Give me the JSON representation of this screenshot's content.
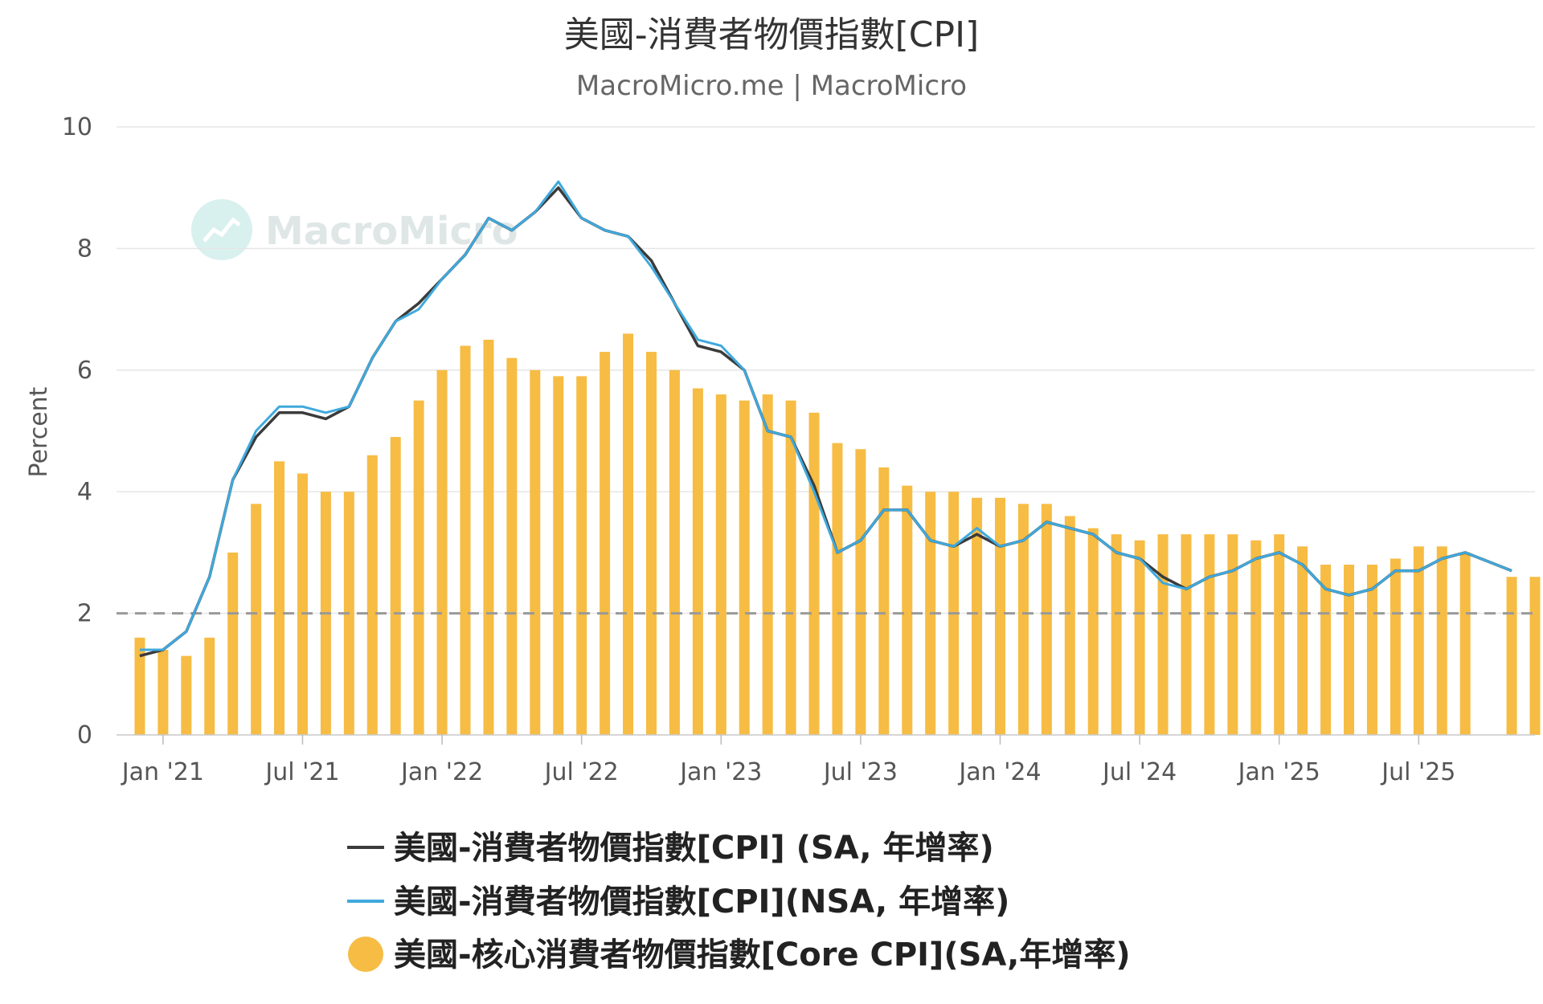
{
  "colors": {
    "sa_line": "#3b3b3b",
    "nsa_line": "#3fa9dd",
    "core_bar": "#f6bc44",
    "grid": "#e6e6e6",
    "ref_line": "#999999",
    "watermark_circle": "#d8f1ee"
  },
  "watermark": {
    "text": "MacroMicro",
    "icon": "macromicro-logo-icon"
  },
  "chart_data": {
    "type": "bar",
    "title": "美國-消費者物價指數[CPI]",
    "subtitle": "MacroMicro.me | MacroMicro",
    "ylabel": "Percent",
    "ylim": [
      0,
      10
    ],
    "yticks": [
      "0",
      "2",
      "4",
      "6",
      "8",
      "10"
    ],
    "xlim": [
      "2020-11",
      "2025-12"
    ],
    "xticks": [
      {
        "date": "2021-01",
        "label": "Jan '21"
      },
      {
        "date": "2021-07",
        "label": "Jul '21"
      },
      {
        "date": "2022-01",
        "label": "Jan '22"
      },
      {
        "date": "2022-07",
        "label": "Jul '22"
      },
      {
        "date": "2023-01",
        "label": "Jan '23"
      },
      {
        "date": "2023-07",
        "label": "Jul '23"
      },
      {
        "date": "2024-01",
        "label": "Jan '24"
      },
      {
        "date": "2024-07",
        "label": "Jul '24"
      },
      {
        "date": "2025-01",
        "label": "Jan '25"
      },
      {
        "date": "2025-07",
        "label": "Jul '25"
      }
    ],
    "reference_line": 2,
    "grid": true,
    "legend_position": "bottom",
    "series": [
      {
        "name": "美國-消費者物價指數[CPI] (SA, 年增率)",
        "type": "line",
        "x": [
          "2020-12",
          "2021-01",
          "2021-02",
          "2021-03",
          "2021-04",
          "2021-05",
          "2021-06",
          "2021-07",
          "2021-08",
          "2021-09",
          "2021-10",
          "2021-11",
          "2021-12",
          "2022-01",
          "2022-02",
          "2022-03",
          "2022-04",
          "2022-05",
          "2022-06",
          "2022-07",
          "2022-08",
          "2022-09",
          "2022-10",
          "2022-11",
          "2022-12",
          "2023-01",
          "2023-02",
          "2023-03",
          "2023-04",
          "2023-05",
          "2023-06",
          "2023-07",
          "2023-08",
          "2023-09",
          "2023-10",
          "2023-11",
          "2023-12",
          "2024-01",
          "2024-02",
          "2024-03",
          "2024-04",
          "2024-05",
          "2024-06",
          "2024-07",
          "2024-08",
          "2024-09",
          "2024-10",
          "2024-11",
          "2024-12",
          "2025-01",
          "2025-02",
          "2025-03",
          "2025-04",
          "2025-05",
          "2025-06",
          "2025-07",
          "2025-08",
          "2025-09",
          "2025-11"
        ],
        "values": [
          1.3,
          1.4,
          1.7,
          2.6,
          4.2,
          4.9,
          5.3,
          5.3,
          5.2,
          5.4,
          6.2,
          6.8,
          7.1,
          7.5,
          7.9,
          8.5,
          8.3,
          8.6,
          9.0,
          8.5,
          8.3,
          8.2,
          7.8,
          7.1,
          6.4,
          6.3,
          6.0,
          5.0,
          4.9,
          4.1,
          3.0,
          3.2,
          3.7,
          3.7,
          3.2,
          3.1,
          3.3,
          3.1,
          3.2,
          3.5,
          3.4,
          3.3,
          3.0,
          2.9,
          2.6,
          2.4,
          2.6,
          2.7,
          2.9,
          3.0,
          2.8,
          2.4,
          2.3,
          2.4,
          2.7,
          2.7,
          2.9,
          3.0,
          2.7
        ]
      },
      {
        "name": "美國-消費者物價指數[CPI](NSA, 年增率)",
        "type": "line",
        "x": [
          "2020-12",
          "2021-01",
          "2021-02",
          "2021-03",
          "2021-04",
          "2021-05",
          "2021-06",
          "2021-07",
          "2021-08",
          "2021-09",
          "2021-10",
          "2021-11",
          "2021-12",
          "2022-01",
          "2022-02",
          "2022-03",
          "2022-04",
          "2022-05",
          "2022-06",
          "2022-07",
          "2022-08",
          "2022-09",
          "2022-10",
          "2022-11",
          "2022-12",
          "2023-01",
          "2023-02",
          "2023-03",
          "2023-04",
          "2023-05",
          "2023-06",
          "2023-07",
          "2023-08",
          "2023-09",
          "2023-10",
          "2023-11",
          "2023-12",
          "2024-01",
          "2024-02",
          "2024-03",
          "2024-04",
          "2024-05",
          "2024-06",
          "2024-07",
          "2024-08",
          "2024-09",
          "2024-10",
          "2024-11",
          "2024-12",
          "2025-01",
          "2025-02",
          "2025-03",
          "2025-04",
          "2025-05",
          "2025-06",
          "2025-07",
          "2025-08",
          "2025-09",
          "2025-11"
        ],
        "values": [
          1.4,
          1.4,
          1.7,
          2.6,
          4.2,
          5.0,
          5.4,
          5.4,
          5.3,
          5.4,
          6.2,
          6.8,
          7.0,
          7.5,
          7.9,
          8.5,
          8.3,
          8.6,
          9.1,
          8.5,
          8.3,
          8.2,
          7.7,
          7.1,
          6.5,
          6.4,
          6.0,
          5.0,
          4.9,
          4.0,
          3.0,
          3.2,
          3.7,
          3.7,
          3.2,
          3.1,
          3.4,
          3.1,
          3.2,
          3.5,
          3.4,
          3.3,
          3.0,
          2.9,
          2.5,
          2.4,
          2.6,
          2.7,
          2.9,
          3.0,
          2.8,
          2.4,
          2.3,
          2.4,
          2.7,
          2.7,
          2.9,
          3.0,
          2.7
        ]
      },
      {
        "name": "美國-核心消費者物價指數[Core CPI](SA,年增率)",
        "type": "bar",
        "x": [
          "2020-12",
          "2021-01",
          "2021-02",
          "2021-03",
          "2021-04",
          "2021-05",
          "2021-06",
          "2021-07",
          "2021-08",
          "2021-09",
          "2021-10",
          "2021-11",
          "2021-12",
          "2022-01",
          "2022-02",
          "2022-03",
          "2022-04",
          "2022-05",
          "2022-06",
          "2022-07",
          "2022-08",
          "2022-09",
          "2022-10",
          "2022-11",
          "2022-12",
          "2023-01",
          "2023-02",
          "2023-03",
          "2023-04",
          "2023-05",
          "2023-06",
          "2023-07",
          "2023-08",
          "2023-09",
          "2023-10",
          "2023-11",
          "2023-12",
          "2024-01",
          "2024-02",
          "2024-03",
          "2024-04",
          "2024-05",
          "2024-06",
          "2024-07",
          "2024-08",
          "2024-09",
          "2024-10",
          "2024-11",
          "2024-12",
          "2025-01",
          "2025-02",
          "2025-03",
          "2025-04",
          "2025-05",
          "2025-06",
          "2025-07",
          "2025-08",
          "2025-09",
          "2025-11",
          "2025-12"
        ],
        "values": [
          1.6,
          1.4,
          1.3,
          1.6,
          3.0,
          3.8,
          4.5,
          4.3,
          4.0,
          4.0,
          4.6,
          4.9,
          5.5,
          6.0,
          6.4,
          6.5,
          6.2,
          6.0,
          5.9,
          5.9,
          6.3,
          6.6,
          6.3,
          6.0,
          5.7,
          5.6,
          5.5,
          5.6,
          5.5,
          5.3,
          4.8,
          4.7,
          4.4,
          4.1,
          4.0,
          4.0,
          3.9,
          3.9,
          3.8,
          3.8,
          3.6,
          3.4,
          3.3,
          3.2,
          3.3,
          3.3,
          3.3,
          3.3,
          3.2,
          3.3,
          3.1,
          2.8,
          2.8,
          2.8,
          2.9,
          3.1,
          3.1,
          3.0,
          2.6,
          2.6
        ]
      }
    ]
  },
  "legend": [
    {
      "label": "美國-消費者物價指數[CPI] (SA, 年增率)",
      "marker": "line",
      "color": "#3b3b3b"
    },
    {
      "label": "美國-消費者物價指數[CPI](NSA, 年增率)",
      "marker": "line",
      "color": "#3fa9dd"
    },
    {
      "label": "美國-核心消費者物價指數[Core CPI](SA,年增率)",
      "marker": "circle",
      "color": "#f6bc44"
    }
  ]
}
